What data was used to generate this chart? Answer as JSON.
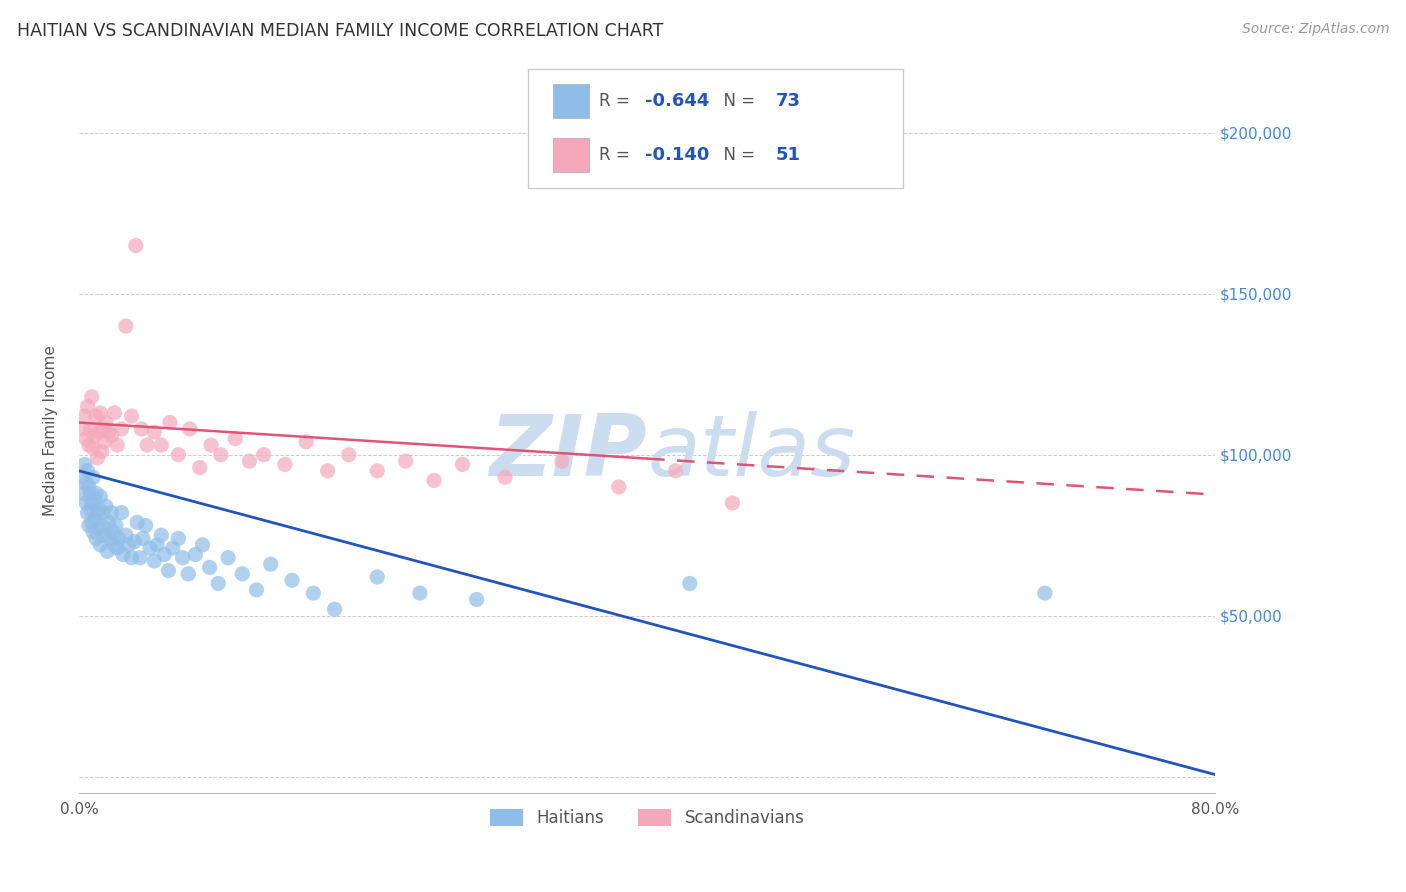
{
  "title": "HAITIAN VS SCANDINAVIAN MEDIAN FAMILY INCOME CORRELATION CHART",
  "source": "Source: ZipAtlas.com",
  "ylabel": "Median Family Income",
  "xlim": [
    0.0,
    0.8
  ],
  "ylim": [
    -5000,
    220000
  ],
  "yticks": [
    0,
    50000,
    100000,
    150000,
    200000
  ],
  "ytick_labels": [
    "",
    "$50,000",
    "$100,000",
    "$150,000",
    "$200,000"
  ],
  "xticks": [
    0.0,
    0.1,
    0.2,
    0.3,
    0.4,
    0.5,
    0.6,
    0.7,
    0.8
  ],
  "grid_color": "#cccccc",
  "watermark_zip": "ZIP",
  "watermark_atlas": "atlas",
  "watermark_color": "#ccddf0",
  "haitian_color": "#90bde8",
  "scandinavian_color": "#f5a8bc",
  "haitian_R": -0.644,
  "haitian_N": 73,
  "scandinavian_R": -0.14,
  "scandinavian_N": 51,
  "haitian_line_color": "#2255bb",
  "scandinavian_line_color": "#e05575",
  "haitian_line_intercept": 95000,
  "haitian_line_slope": -118000,
  "scandinavian_line_intercept": 110000,
  "scandinavian_line_slope": -28000,
  "haitian_x": [
    0.002,
    0.003,
    0.004,
    0.005,
    0.005,
    0.006,
    0.006,
    0.007,
    0.007,
    0.008,
    0.008,
    0.009,
    0.009,
    0.01,
    0.01,
    0.011,
    0.011,
    0.012,
    0.012,
    0.013,
    0.014,
    0.014,
    0.015,
    0.015,
    0.016,
    0.017,
    0.018,
    0.019,
    0.02,
    0.021,
    0.022,
    0.023,
    0.024,
    0.025,
    0.026,
    0.027,
    0.028,
    0.03,
    0.031,
    0.033,
    0.035,
    0.037,
    0.039,
    0.041,
    0.043,
    0.045,
    0.047,
    0.05,
    0.053,
    0.055,
    0.058,
    0.06,
    0.063,
    0.066,
    0.07,
    0.073,
    0.077,
    0.082,
    0.087,
    0.092,
    0.098,
    0.105,
    0.115,
    0.125,
    0.135,
    0.15,
    0.165,
    0.18,
    0.21,
    0.24,
    0.28,
    0.43,
    0.68
  ],
  "haitian_y": [
    93000,
    88000,
    97000,
    91000,
    85000,
    95000,
    82000,
    90000,
    78000,
    88000,
    83000,
    79000,
    85000,
    93000,
    76000,
    86000,
    80000,
    88000,
    74000,
    82000,
    77000,
    83000,
    72000,
    87000,
    78000,
    82000,
    75000,
    84000,
    70000,
    79000,
    74000,
    82000,
    76000,
    72000,
    78000,
    71000,
    74000,
    82000,
    69000,
    75000,
    72000,
    68000,
    73000,
    79000,
    68000,
    74000,
    78000,
    71000,
    67000,
    72000,
    75000,
    69000,
    64000,
    71000,
    74000,
    68000,
    63000,
    69000,
    72000,
    65000,
    60000,
    68000,
    63000,
    58000,
    66000,
    61000,
    57000,
    52000,
    62000,
    57000,
    55000,
    60000,
    57000
  ],
  "scandinavian_x": [
    0.003,
    0.004,
    0.005,
    0.006,
    0.007,
    0.008,
    0.009,
    0.01,
    0.011,
    0.012,
    0.013,
    0.014,
    0.015,
    0.016,
    0.017,
    0.018,
    0.019,
    0.021,
    0.023,
    0.025,
    0.027,
    0.03,
    0.033,
    0.037,
    0.04,
    0.044,
    0.048,
    0.053,
    0.058,
    0.064,
    0.07,
    0.078,
    0.085,
    0.093,
    0.1,
    0.11,
    0.12,
    0.13,
    0.145,
    0.16,
    0.175,
    0.19,
    0.21,
    0.23,
    0.25,
    0.27,
    0.3,
    0.34,
    0.38,
    0.42,
    0.46
  ],
  "scandinavian_y": [
    108000,
    112000,
    105000,
    115000,
    103000,
    108000,
    118000,
    102000,
    106000,
    112000,
    99000,
    107000,
    113000,
    101000,
    108000,
    104000,
    110000,
    107000,
    106000,
    113000,
    103000,
    108000,
    140000,
    112000,
    165000,
    108000,
    103000,
    107000,
    103000,
    110000,
    100000,
    108000,
    96000,
    103000,
    100000,
    105000,
    98000,
    100000,
    97000,
    104000,
    95000,
    100000,
    95000,
    98000,
    92000,
    97000,
    93000,
    98000,
    90000,
    95000,
    85000
  ]
}
